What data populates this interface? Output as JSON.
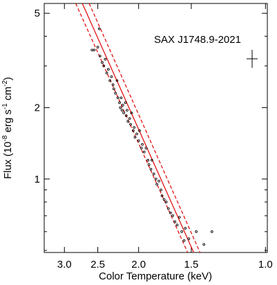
{
  "chart_data": {
    "type": "scatter",
    "annotation": "SAX J1748.9-2021",
    "xlabel": "Color Temperature (keV)",
    "ylabel": [
      "Flux (10",
      "-8",
      " erg s",
      "-1",
      " cm",
      "-2",
      ")"
    ],
    "xlog": true,
    "ylog": true,
    "xlim": [
      3.35,
      0.99
    ],
    "ylim": [
      0.49,
      5.5
    ],
    "xticks": [
      {
        "value": 3,
        "label": "3.0"
      },
      2.5,
      {
        "value": 2,
        "label": "2.0"
      },
      1.5,
      {
        "value": 1,
        "label": "1.0"
      }
    ],
    "yticks": [
      1,
      2,
      5
    ],
    "yminor": [
      0.5,
      0.6,
      0.7,
      0.8,
      0.9,
      3,
      4
    ],
    "point_color": "#000000",
    "x": [
      2.58,
      2.55,
      2.48,
      2.5,
      2.47,
      2.44,
      2.42,
      2.4,
      2.38,
      2.36,
      2.34,
      2.32,
      2.3,
      2.29,
      2.27,
      2.25,
      2.24,
      2.22,
      2.21,
      2.2,
      2.19,
      2.18,
      2.17,
      2.15,
      2.14,
      2.13,
      2.12,
      2.1,
      2.09,
      2.08,
      2.06,
      2.05,
      2.04,
      2.02,
      2.0,
      1.99,
      1.97,
      1.96,
      1.94,
      1.92,
      1.9,
      1.89,
      1.87,
      1.86,
      1.84,
      1.82,
      1.81,
      1.79,
      1.77,
      1.76,
      1.74,
      1.72,
      1.7,
      1.68,
      1.66,
      1.64,
      1.62,
      1.58,
      1.55,
      1.52,
      1.46,
      1.4,
      1.34,
      1.6,
      1.56
    ],
    "values": [
      3.5,
      3.5,
      4.3,
      3.6,
      3.3,
      3.1,
      3.0,
      3.2,
      2.8,
      2.9,
      2.6,
      2.7,
      2.5,
      2.4,
      2.3,
      2.6,
      2.2,
      2.1,
      2.0,
      2.2,
      1.95,
      2.05,
      1.9,
      2.1,
      1.85,
      1.95,
      1.75,
      1.8,
      1.7,
      1.9,
      1.6,
      1.65,
      1.5,
      1.55,
      1.45,
      1.6,
      1.35,
      1.4,
      1.3,
      1.35,
      1.2,
      1.15,
      1.1,
      1.2,
      1.05,
      1.0,
      0.95,
      0.98,
      0.9,
      0.85,
      0.82,
      0.8,
      0.75,
      0.72,
      0.7,
      0.66,
      0.64,
      0.6,
      0.62,
      0.56,
      0.6,
      0.53,
      0.6,
      0.69,
      0.55
    ],
    "lines": [
      {
        "x": [
          2.72,
          1.48
        ],
        "y": [
          5.5,
          0.49
        ],
        "color": "#e00000",
        "dashed": false
      },
      {
        "x": [
          2.82,
          1.53
        ],
        "y": [
          5.5,
          0.49
        ],
        "color": "#e00000",
        "dashed": true
      },
      {
        "x": [
          2.62,
          1.43
        ],
        "y": [
          5.5,
          0.49
        ],
        "color": "#e00000",
        "dashed": true
      }
    ]
  }
}
